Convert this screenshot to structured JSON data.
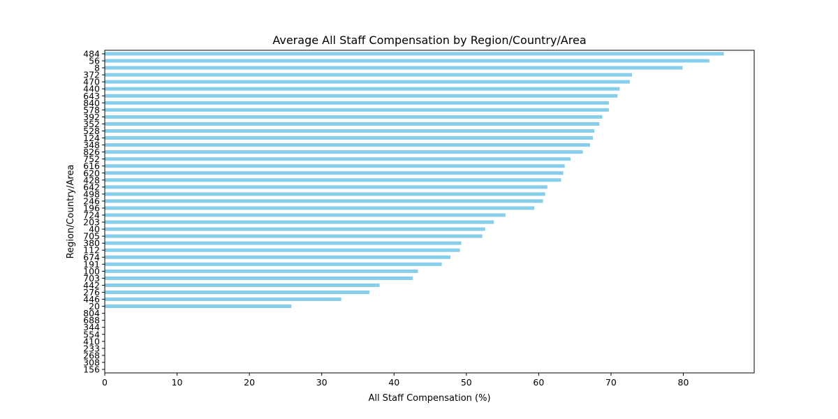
{
  "chart_data": {
    "type": "bar",
    "orientation": "horizontal",
    "title": "Average All Staff Compensation by Region/Country/Area",
    "xlabel": "All Staff Compensation (%)",
    "ylabel": "Region/Country/Area",
    "xlim": [
      0,
      89.8
    ],
    "xticks": [
      0,
      10,
      20,
      30,
      40,
      50,
      60,
      70,
      80
    ],
    "grid": false,
    "bar_color": "#87ceeb",
    "categories": [
      "484",
      "56",
      "8",
      "372",
      "470",
      "440",
      "643",
      "840",
      "578",
      "392",
      "352",
      "528",
      "124",
      "348",
      "826",
      "752",
      "616",
      "620",
      "428",
      "642",
      "498",
      "246",
      "196",
      "724",
      "203",
      "40",
      "705",
      "380",
      "112",
      "674",
      "191",
      "100",
      "703",
      "442",
      "276",
      "446",
      "20",
      "804",
      "688",
      "344",
      "554",
      "410",
      "233",
      "268",
      "308",
      "156"
    ],
    "values": [
      85.6,
      83.6,
      79.9,
      72.9,
      72.6,
      71.2,
      70.9,
      69.7,
      69.7,
      68.8,
      68.4,
      67.7,
      67.5,
      67.1,
      66.1,
      64.4,
      63.6,
      63.4,
      63.1,
      61.2,
      60.9,
      60.6,
      59.4,
      55.4,
      53.8,
      52.6,
      52.2,
      49.3,
      49.1,
      47.8,
      46.6,
      43.3,
      42.6,
      38.0,
      36.6,
      32.7,
      25.8,
      0,
      0,
      0,
      0,
      0,
      0,
      0,
      0,
      0
    ]
  }
}
